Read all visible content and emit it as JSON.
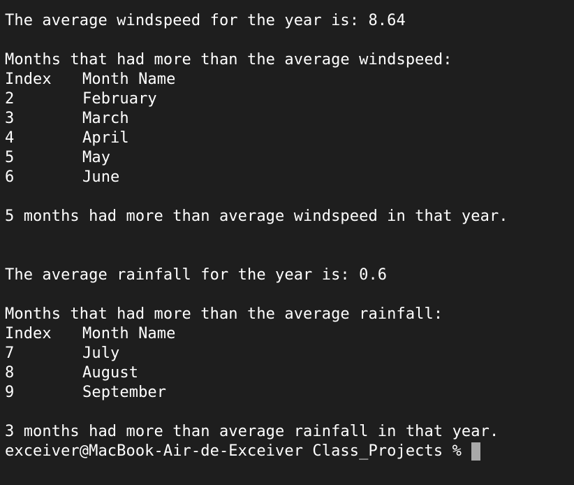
{
  "wind": {
    "average_line": "The average windspeed for the year is: 8.64",
    "heading": "Months that had more than the average windspeed:",
    "col_index": "Index",
    "col_month": "Month Name",
    "rows": [
      {
        "index": "2",
        "month": "February"
      },
      {
        "index": "3",
        "month": "March"
      },
      {
        "index": "4",
        "month": "April"
      },
      {
        "index": "5",
        "month": "May"
      },
      {
        "index": "6",
        "month": "June"
      }
    ],
    "summary": "5 months had more than average windspeed in that year."
  },
  "rain": {
    "average_line": "The average rainfall for the year is: 0.6",
    "heading": "Months that had more than the average rainfall:",
    "col_index": "Index",
    "col_month": "Month Name",
    "rows": [
      {
        "index": "7",
        "month": "July"
      },
      {
        "index": "8",
        "month": "August"
      },
      {
        "index": "9",
        "month": "September"
      }
    ],
    "summary": "3 months had more than average rainfall in that year."
  },
  "prompt": {
    "text": "exceiver@MacBook-Air-de-Exceiver Class_Projects % "
  },
  "colors": {
    "background": "#1e1e1e",
    "foreground": "#ffffff",
    "cursor": "#a9a9a9"
  }
}
